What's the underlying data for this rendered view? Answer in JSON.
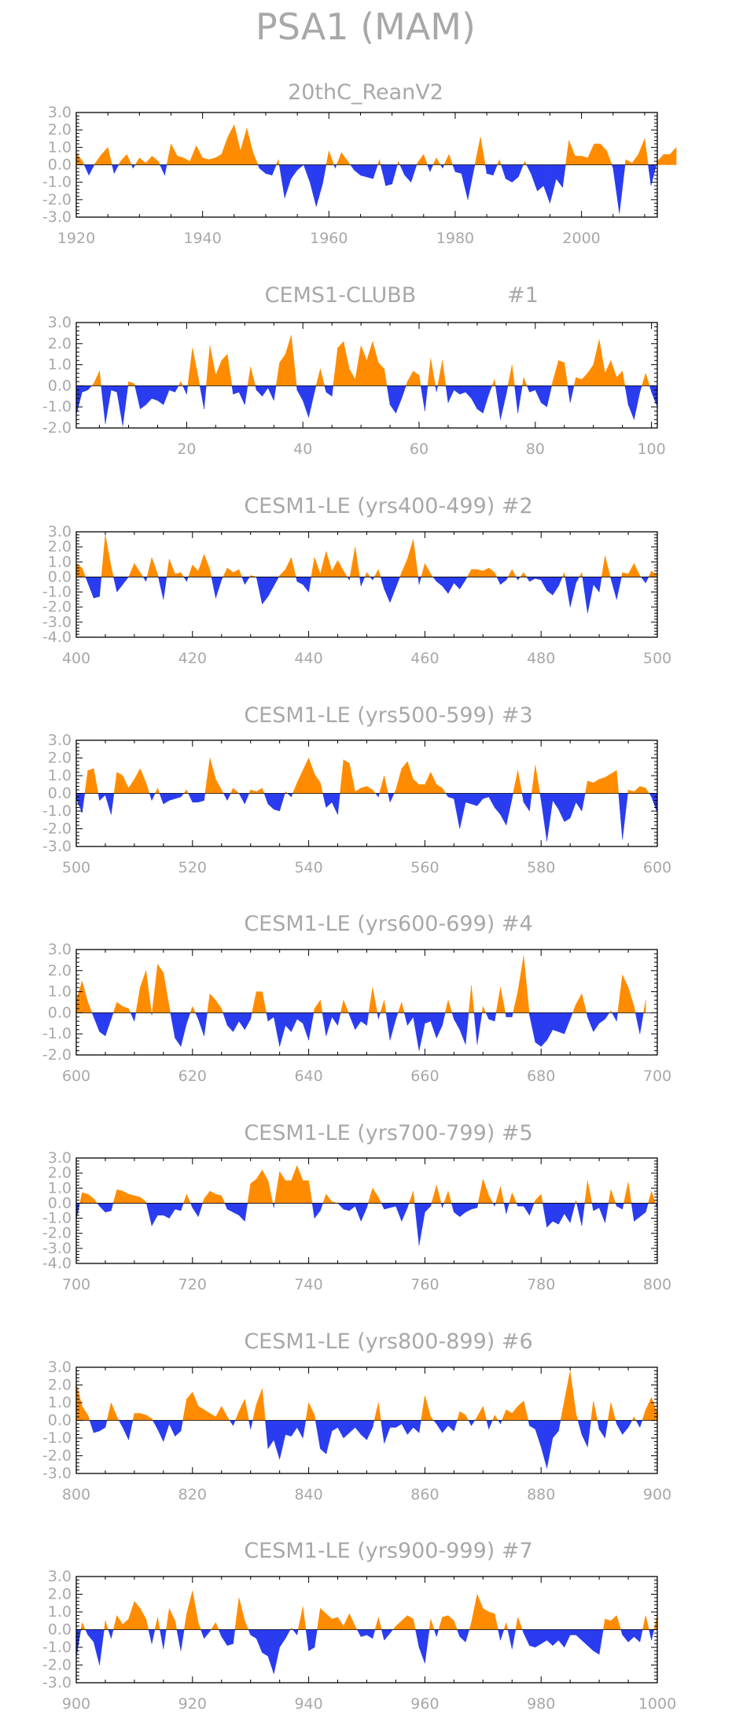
{
  "figure_title": "PSA1  (MAM)",
  "colors": {
    "positive": "#ff8c00",
    "negative": "#2a3cef",
    "text": "#a8a8a8"
  },
  "chart_data": [
    {
      "type": "area",
      "title": "20thC_ReanV2",
      "xlim": [
        1920,
        2012
      ],
      "xticks": [
        1920,
        1940,
        1960,
        1980,
        2000
      ],
      "ylim": [
        -3.0,
        3.0
      ],
      "yticks": [
        "3.0",
        "2.0",
        "1.0",
        "0.0",
        "-1.0",
        "-2.0",
        "-3.0"
      ],
      "x_start": 1920,
      "values": [
        0.7,
        0.2,
        -0.6,
        0.1,
        0.6,
        1.0,
        -0.5,
        0.2,
        0.6,
        -0.2,
        0.4,
        0.1,
        0.5,
        0.2,
        -0.6,
        1.2,
        0.5,
        0.4,
        0.2,
        1.1,
        0.4,
        0.3,
        0.4,
        0.6,
        1.6,
        2.3,
        0.8,
        2.1,
        0.7,
        -0.2,
        -0.5,
        -0.6,
        0.3,
        -1.9,
        -0.8,
        -0.3,
        0.0,
        -1.0,
        -2.4,
        -1.1,
        0.8,
        -0.2,
        0.7,
        0.2,
        -0.3,
        -0.6,
        -0.7,
        -0.8,
        0.3,
        -1.2,
        -1.1,
        0.2,
        -0.6,
        -1.0,
        0.1,
        0.6,
        -0.4,
        0.4,
        -0.2,
        0.6,
        -0.4,
        -0.5,
        -2.0,
        -0.2,
        1.6,
        -0.5,
        -0.6,
        0.3,
        -0.8,
        -1.0,
        -0.7,
        0.2,
        -0.5,
        -1.5,
        -1.2,
        -2.2,
        -0.8,
        -1.3,
        1.4,
        0.5,
        0.5,
        0.4,
        1.2,
        1.2,
        0.8,
        -0.2,
        -2.8,
        0.3,
        0.1,
        0.6,
        1.5,
        -1.2,
        0.2,
        0.6,
        0.6,
        1.0
      ]
    },
    {
      "type": "area",
      "title": "CEMS1-CLUBB",
      "subtitle": "#1",
      "xlim": [
        1,
        101
      ],
      "xticks": [
        20,
        40,
        60,
        80,
        100
      ],
      "ylim": [
        -2.0,
        3.0
      ],
      "yticks": [
        "3.0",
        "2.0",
        "1.0",
        "0.0",
        "-1.0",
        "-2.0"
      ],
      "x_start": 1,
      "values": [
        -1.4,
        -0.3,
        -0.2,
        0.1,
        0.7,
        -1.8,
        -0.2,
        -0.3,
        -1.9,
        0.2,
        0.1,
        -1.1,
        -0.9,
        -0.6,
        -0.7,
        -0.9,
        -0.2,
        -0.3,
        0.2,
        -0.4,
        1.8,
        0.4,
        -1.1,
        1.9,
        0.5,
        1.2,
        1.5,
        -0.4,
        -0.3,
        -0.9,
        0.9,
        -0.2,
        -0.5,
        -0.1,
        -0.7,
        1.1,
        1.5,
        2.4,
        -0.2,
        -0.7,
        -1.5,
        -0.3,
        0.8,
        -0.3,
        -0.5,
        1.8,
        2.1,
        0.8,
        0.3,
        1.9,
        1.2,
        2.1,
        1.1,
        0.8,
        -0.9,
        -1.3,
        -0.6,
        0.2,
        0.7,
        0.5,
        -1.2,
        1.3,
        -0.3,
        1.2,
        -0.8,
        -0.2,
        -0.4,
        -0.3,
        -0.6,
        -1.1,
        -1.3,
        -0.4,
        0.3,
        -1.6,
        -0.4,
        1.0,
        -1.3,
        0.4,
        -0.3,
        -0.2,
        -0.8,
        -1.0,
        0.2,
        1.2,
        1.1,
        -0.8,
        0.4,
        0.3,
        0.6,
        1.0,
        2.2,
        0.6,
        1.2,
        0.4,
        0.7,
        -0.9,
        -1.6,
        -0.3,
        0.6,
        -0.3,
        -1.0
      ]
    },
    {
      "type": "area",
      "title": "CESM1-LE (yrs400-499) #2",
      "xlim": [
        400,
        500
      ],
      "xticks": [
        400,
        420,
        440,
        460,
        480,
        500
      ],
      "ylim": [
        -4.0,
        3.0
      ],
      "yticks": [
        "3.0",
        "2.0",
        "1.0",
        "0.0",
        "-1.0",
        "-2.0",
        "-3.0",
        "-4.0"
      ],
      "x_start": 400,
      "values": [
        0.9,
        0.6,
        -0.4,
        -1.4,
        -1.3,
        2.8,
        0.7,
        -1.0,
        -0.5,
        0.0,
        0.9,
        0.3,
        -0.3,
        1.3,
        0.2,
        -1.5,
        1.2,
        0.2,
        0.3,
        -0.3,
        0.8,
        0.4,
        1.5,
        0.5,
        -1.4,
        -0.2,
        0.6,
        0.3,
        0.5,
        -0.5,
        0.1,
        0.0,
        -1.8,
        -1.3,
        -0.6,
        0.1,
        0.5,
        1.3,
        -0.3,
        -0.5,
        -1.0,
        1.3,
        0.2,
        1.7,
        0.4,
        1.1,
        0.4,
        -0.2,
        2.0,
        -0.6,
        0.3,
        -0.2,
        0.5,
        -0.8,
        -1.7,
        -0.7,
        0.3,
        1.2,
        2.5,
        -0.5,
        0.9,
        0.2,
        -0.3,
        -0.6,
        -1.1,
        -0.4,
        -0.8,
        -0.2,
        0.5,
        0.5,
        0.4,
        0.6,
        0.3,
        -0.5,
        -0.2,
        0.5,
        -0.2,
        0.3,
        -0.3,
        -0.1,
        -0.2,
        -0.9,
        -1.2,
        -0.6,
        0.3,
        -2.0,
        -0.4,
        0.3,
        -2.4,
        -0.5,
        -1.0,
        1.4,
        -0.1,
        -1.5,
        0.3,
        0.2,
        0.9,
        0.1,
        -0.4,
        0.4,
        0.1
      ]
    },
    {
      "type": "area",
      "title": "CESM1-LE (yrs500-599) #3",
      "xlim": [
        500,
        600
      ],
      "xticks": [
        500,
        520,
        540,
        560,
        580,
        600
      ],
      "ylim": [
        -3.0,
        3.0
      ],
      "yticks": [
        "3.0",
        "2.0",
        "1.0",
        "0.0",
        "-1.0",
        "-2.0",
        "-3.0"
      ],
      "x_start": 500,
      "values": [
        -0.3,
        -1.1,
        1.3,
        1.4,
        -0.4,
        -0.1,
        -1.2,
        1.2,
        1.0,
        0.3,
        0.8,
        1.4,
        0.6,
        -0.4,
        0.3,
        -0.6,
        -0.4,
        -0.3,
        -0.2,
        0.2,
        -0.5,
        -0.5,
        -0.4,
        2.0,
        0.8,
        0.2,
        -0.4,
        0.3,
        0.0,
        -0.6,
        0.2,
        0.1,
        0.3,
        -0.6,
        -0.9,
        -1.0,
        0.1,
        -0.2,
        0.6,
        1.3,
        2.0,
        1.1,
        0.6,
        -0.8,
        -0.5,
        -1.2,
        1.9,
        1.7,
        0.1,
        0.3,
        0.4,
        0.2,
        -0.2,
        1.0,
        -0.5,
        0.2,
        1.4,
        1.8,
        0.8,
        0.5,
        0.5,
        1.2,
        0.5,
        0.3,
        -0.2,
        -0.3,
        -2.0,
        -0.5,
        -0.6,
        -0.7,
        -0.3,
        -0.2,
        -0.8,
        -1.2,
        -1.8,
        -0.3,
        1.3,
        -0.5,
        -1.0,
        1.6,
        -0.4,
        -2.7,
        -0.4,
        -0.9,
        -1.6,
        -1.4,
        -0.5,
        -1.0,
        0.7,
        0.6,
        0.8,
        0.9,
        1.1,
        1.3,
        -2.6,
        0.2,
        0.1,
        0.4,
        0.3,
        -0.2,
        -1.1
      ]
    },
    {
      "type": "area",
      "title": "CESM1-LE (yrs600-699) #4",
      "xlim": [
        600,
        700
      ],
      "xticks": [
        600,
        620,
        640,
        660,
        680,
        700
      ],
      "ylim": [
        -2.0,
        3.0
      ],
      "yticks": [
        "3.0",
        "2.0",
        "1.0",
        "0.0",
        "-1.0",
        "-2.0"
      ],
      "x_start": 600,
      "values": [
        0.6,
        1.5,
        0.5,
        -0.2,
        -0.9,
        -1.1,
        -0.3,
        0.5,
        0.3,
        0.2,
        -0.4,
        1.2,
        2.0,
        -0.1,
        2.3,
        1.9,
        0.3,
        -1.2,
        -1.6,
        -0.5,
        0.3,
        -0.3,
        -1.1,
        0.9,
        0.6,
        0.2,
        -0.6,
        -0.9,
        -0.4,
        -0.8,
        -0.3,
        1.0,
        1.0,
        -0.4,
        -0.2,
        -1.6,
        -0.6,
        -0.9,
        -0.3,
        -0.5,
        -1.3,
        0.2,
        0.6,
        -1.1,
        -0.2,
        -0.6,
        0.6,
        -0.1,
        -0.8,
        -0.4,
        -0.6,
        1.2,
        -0.3,
        0.6,
        -1.3,
        -0.3,
        0.5,
        -0.6,
        -0.2,
        -1.8,
        -0.5,
        -0.4,
        -1.2,
        -0.6,
        0.6,
        -0.3,
        -0.8,
        -1.5,
        1.3,
        -1.5,
        0.3,
        -0.3,
        -0.4,
        1.2,
        -0.2,
        -0.2,
        1.0,
        2.7,
        -0.1,
        -1.4,
        -1.6,
        -1.3,
        -0.8,
        -0.9,
        -1.0,
        -0.3,
        0.4,
        0.9,
        -0.2,
        -0.9,
        -0.5,
        -0.3,
        0.1,
        -0.4,
        1.8,
        1.2,
        0.3,
        -1.0,
        0.6
      ]
    },
    {
      "type": "area",
      "title": "CESM1-LE (yrs700-799) #5",
      "xlim": [
        700,
        800
      ],
      "xticks": [
        700,
        720,
        740,
        760,
        780,
        800
      ],
      "ylim": [
        -4.0,
        3.0
      ],
      "yticks": [
        "3.0",
        "2.0",
        "1.0",
        "0.0",
        "-1.0",
        "-2.0",
        "-3.0",
        "-4.0"
      ],
      "x_start": 700,
      "values": [
        -1.1,
        0.7,
        0.6,
        0.3,
        -0.2,
        -0.6,
        -0.5,
        0.9,
        0.8,
        0.6,
        0.5,
        0.4,
        0.1,
        -1.5,
        -0.8,
        -0.8,
        -1.0,
        -0.4,
        -0.5,
        0.6,
        -0.3,
        -0.9,
        0.3,
        0.8,
        0.6,
        0.5,
        -0.4,
        -0.6,
        -0.8,
        -1.2,
        1.3,
        1.6,
        2.2,
        1.5,
        -0.3,
        2.1,
        1.5,
        1.5,
        2.5,
        1.5,
        1.5,
        -1.0,
        -0.5,
        0.6,
        0.1,
        0.0,
        -0.4,
        -0.5,
        -0.2,
        -1.2,
        -0.3,
        1.0,
        0.4,
        -0.4,
        -0.3,
        -0.2,
        -1.2,
        -0.3,
        0.8,
        -2.8,
        -0.6,
        -0.2,
        1.2,
        -0.3,
        0.8,
        -0.6,
        -0.9,
        -0.6,
        -0.4,
        -0.3,
        1.6,
        0.5,
        -0.2,
        1.1,
        -0.7,
        0.7,
        -0.2,
        -0.2,
        -0.8,
        0.2,
        0.6,
        -1.6,
        -1.2,
        -1.4,
        -0.7,
        -1.3,
        0.2,
        -1.5,
        1.5,
        -0.5,
        -0.3,
        -1.3,
        0.9,
        -0.2,
        -0.4,
        1.4,
        -1.2,
        -0.9,
        -0.6,
        0.8,
        -0.4
      ]
    },
    {
      "type": "area",
      "title": "CESM1-LE (yrs800-899) #6",
      "xlim": [
        800,
        900
      ],
      "xticks": [
        800,
        820,
        840,
        860,
        880,
        900
      ],
      "ylim": [
        -3.0,
        3.0
      ],
      "yticks": [
        "3.0",
        "2.0",
        "1.0",
        "0.0",
        "-1.0",
        "-2.0",
        "-3.0"
      ],
      "x_start": 800,
      "values": [
        2.1,
        0.8,
        0.3,
        -0.7,
        -0.6,
        -0.4,
        1.0,
        0.2,
        -0.4,
        -1.1,
        0.4,
        0.4,
        0.3,
        0.1,
        -0.5,
        -1.2,
        -0.2,
        -0.9,
        -0.6,
        1.2,
        1.6,
        0.8,
        0.6,
        0.4,
        0.2,
        0.8,
        0.2,
        -0.3,
        0.5,
        1.2,
        -0.5,
        0.9,
        1.8,
        -1.6,
        -1.1,
        -2.2,
        -0.8,
        -0.9,
        -0.4,
        -1.0,
        1.0,
        0.3,
        -1.6,
        -1.9,
        -0.6,
        -0.4,
        -1.0,
        -0.7,
        -0.4,
        -0.8,
        -1.1,
        -0.4,
        1.0,
        -1.3,
        -0.4,
        -0.4,
        -0.2,
        -0.8,
        -0.4,
        -0.7,
        1.4,
        0.2,
        -0.2,
        -0.7,
        -0.3,
        -0.6,
        0.5,
        0.3,
        -0.3,
        0.2,
        0.8,
        -0.5,
        0.3,
        -0.2,
        0.6,
        0.4,
        0.8,
        1.1,
        -0.3,
        -0.5,
        -1.5,
        -2.7,
        -1.0,
        -0.6,
        1.1,
        2.8,
        0.4,
        -0.8,
        -1.5,
        1.1,
        -0.5,
        -1.0,
        1.0,
        -0.2,
        -0.8,
        -0.4,
        0.2,
        -0.4,
        0.6,
        1.3,
        0.4
      ]
    },
    {
      "type": "area",
      "title": "CESM1-LE (yrs900-999) #7",
      "xlim": [
        900,
        1000
      ],
      "xticks": [
        900,
        920,
        940,
        960,
        980,
        1000
      ],
      "ylim": [
        -3.0,
        3.0
      ],
      "yticks": [
        "3.0",
        "2.0",
        "1.0",
        "0.0",
        "-1.0",
        "-2.0",
        "-3.0"
      ],
      "x_start": 900,
      "values": [
        -1.6,
        0.4,
        -0.3,
        -0.7,
        -2.0,
        0.5,
        -0.5,
        0.8,
        0.3,
        0.6,
        1.6,
        1.2,
        0.6,
        -0.8,
        0.7,
        -1.1,
        1.2,
        0.5,
        -1.2,
        0.9,
        2.2,
        0.4,
        -0.5,
        -0.1,
        0.4,
        -0.4,
        -0.9,
        -0.8,
        1.8,
        0.5,
        -0.3,
        -0.5,
        -1.3,
        -1.5,
        -2.5,
        -1.0,
        -0.5,
        0.1,
        -0.3,
        1.3,
        -1.2,
        -1.0,
        1.2,
        0.9,
        0.6,
        0.7,
        0.2,
        0.9,
        0.2,
        -0.4,
        -0.3,
        -0.5,
        0.7,
        -0.6,
        -0.2,
        0.2,
        0.5,
        0.8,
        0.6,
        -1.0,
        -1.9,
        0.6,
        -0.4,
        0.7,
        0.8,
        0.5,
        -0.4,
        -0.7,
        0.4,
        2.0,
        1.2,
        1.0,
        0.9,
        -0.6,
        0.4,
        -1.1,
        0.7,
        -0.2,
        -0.9,
        -1.0,
        -0.8,
        -0.6,
        -0.9,
        -0.6,
        -1.0,
        -0.3,
        -0.3,
        -0.6,
        -0.9,
        -1.2,
        -1.4,
        0.6,
        0.5,
        0.8,
        -0.3,
        -0.7,
        -0.4,
        -0.7,
        0.8,
        -0.6,
        0.8
      ]
    }
  ]
}
